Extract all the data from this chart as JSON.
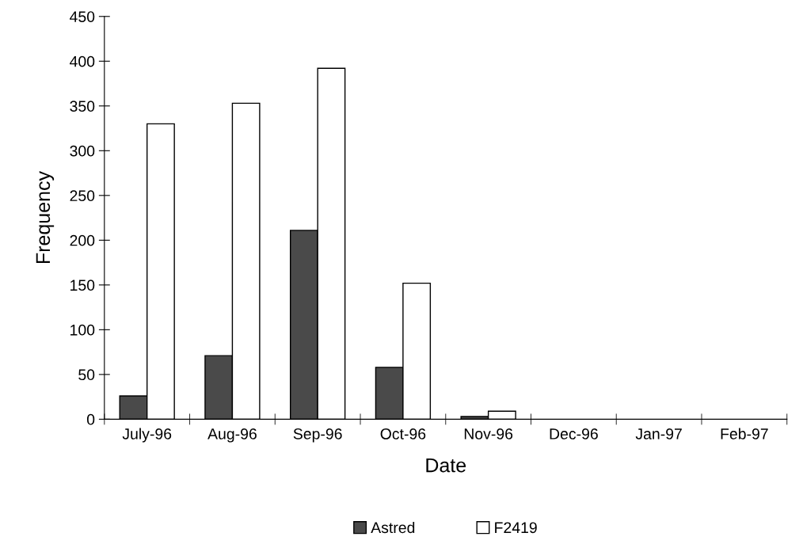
{
  "chart_data": {
    "type": "bar",
    "xlabel": "Date",
    "ylabel": "Frequency",
    "categories": [
      "July-96",
      "Aug-96",
      "Sep-96",
      "Oct-96",
      "Nov-96",
      "Dec-96",
      "Jan-97",
      "Feb-97"
    ],
    "series": [
      {
        "name": "Astred",
        "color": "#4a4a4a",
        "values": [
          26,
          71,
          211,
          58,
          3,
          0,
          0,
          0
        ]
      },
      {
        "name": "F2419",
        "color": "#ffffff",
        "values": [
          330,
          353,
          392,
          152,
          9,
          0,
          0,
          0
        ]
      }
    ],
    "ylim": [
      0,
      450
    ],
    "yticks": [
      0,
      50,
      100,
      150,
      200,
      250,
      300,
      350,
      400,
      450
    ],
    "grid": false,
    "legend": "bottom"
  }
}
